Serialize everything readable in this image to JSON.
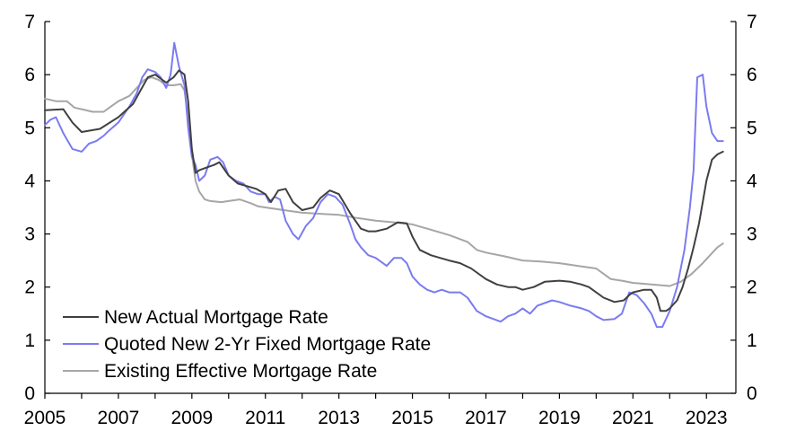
{
  "chart_data": {
    "type": "line",
    "title": "",
    "xlabel": "",
    "ylabel": "",
    "xlim": [
      2005,
      2023.8
    ],
    "ylim": [
      0,
      7
    ],
    "x_ticks": [
      "2005",
      "2007",
      "2009",
      "2011",
      "2013",
      "2015",
      "2017",
      "2019",
      "2021",
      "2023"
    ],
    "y_ticks": [
      "0",
      "1",
      "2",
      "3",
      "4",
      "5",
      "6",
      "7"
    ],
    "y_ticks_right": [
      "0",
      "1",
      "2",
      "3",
      "4",
      "5",
      "6",
      "7"
    ],
    "grid": false,
    "legend_position": "bottom-left",
    "series": [
      {
        "name": "New Actual Mortgage Rate",
        "color": "#404040",
        "points": [
          [
            2005.0,
            5.33
          ],
          [
            2005.5,
            5.35
          ],
          [
            2005.75,
            5.1
          ],
          [
            2006.0,
            4.92
          ],
          [
            2006.5,
            4.98
          ],
          [
            2007.0,
            5.2
          ],
          [
            2007.4,
            5.45
          ],
          [
            2007.6,
            5.7
          ],
          [
            2007.8,
            5.95
          ],
          [
            2008.0,
            6.0
          ],
          [
            2008.3,
            5.85
          ],
          [
            2008.5,
            5.95
          ],
          [
            2008.65,
            6.08
          ],
          [
            2008.8,
            6.0
          ],
          [
            2008.9,
            5.5
          ],
          [
            2009.0,
            4.6
          ],
          [
            2009.1,
            4.15
          ],
          [
            2009.2,
            4.2
          ],
          [
            2009.4,
            4.25
          ],
          [
            2009.6,
            4.3
          ],
          [
            2009.75,
            4.35
          ],
          [
            2010.0,
            4.1
          ],
          [
            2010.25,
            3.95
          ],
          [
            2010.5,
            3.9
          ],
          [
            2010.75,
            3.85
          ],
          [
            2011.0,
            3.75
          ],
          [
            2011.15,
            3.6
          ],
          [
            2011.35,
            3.82
          ],
          [
            2011.55,
            3.85
          ],
          [
            2011.75,
            3.6
          ],
          [
            2012.0,
            3.45
          ],
          [
            2012.3,
            3.5
          ],
          [
            2012.5,
            3.68
          ],
          [
            2012.75,
            3.82
          ],
          [
            2013.0,
            3.75
          ],
          [
            2013.3,
            3.4
          ],
          [
            2013.6,
            3.1
          ],
          [
            2013.8,
            3.05
          ],
          [
            2014.0,
            3.05
          ],
          [
            2014.3,
            3.1
          ],
          [
            2014.6,
            3.22
          ],
          [
            2014.85,
            3.2
          ],
          [
            2015.0,
            2.95
          ],
          [
            2015.2,
            2.7
          ],
          [
            2015.5,
            2.6
          ],
          [
            2015.75,
            2.55
          ],
          [
            2016.0,
            2.5
          ],
          [
            2016.3,
            2.45
          ],
          [
            2016.6,
            2.35
          ],
          [
            2017.0,
            2.15
          ],
          [
            2017.3,
            2.05
          ],
          [
            2017.6,
            2.0
          ],
          [
            2017.8,
            2.0
          ],
          [
            2018.0,
            1.95
          ],
          [
            2018.3,
            2.0
          ],
          [
            2018.6,
            2.1
          ],
          [
            2019.0,
            2.12
          ],
          [
            2019.3,
            2.1
          ],
          [
            2019.6,
            2.05
          ],
          [
            2019.8,
            2.0
          ],
          [
            2020.0,
            1.9
          ],
          [
            2020.2,
            1.8
          ],
          [
            2020.5,
            1.72
          ],
          [
            2020.75,
            1.75
          ],
          [
            2020.9,
            1.85
          ],
          [
            2021.0,
            1.9
          ],
          [
            2021.3,
            1.95
          ],
          [
            2021.5,
            1.95
          ],
          [
            2021.65,
            1.8
          ],
          [
            2021.75,
            1.55
          ],
          [
            2021.9,
            1.55
          ],
          [
            2022.0,
            1.6
          ],
          [
            2022.2,
            1.75
          ],
          [
            2022.35,
            2.0
          ],
          [
            2022.5,
            2.35
          ],
          [
            2022.65,
            2.75
          ],
          [
            2022.8,
            3.2
          ],
          [
            2022.9,
            3.6
          ],
          [
            2023.0,
            4.0
          ],
          [
            2023.15,
            4.4
          ],
          [
            2023.3,
            4.5
          ],
          [
            2023.45,
            4.55
          ]
        ]
      },
      {
        "name": "Quoted New 2-Yr Fixed Mortgage Rate",
        "color": "#7b7bf0",
        "points": [
          [
            2005.0,
            5.05
          ],
          [
            2005.15,
            5.15
          ],
          [
            2005.3,
            5.2
          ],
          [
            2005.5,
            4.9
          ],
          [
            2005.75,
            4.6
          ],
          [
            2006.0,
            4.55
          ],
          [
            2006.2,
            4.7
          ],
          [
            2006.4,
            4.75
          ],
          [
            2006.6,
            4.85
          ],
          [
            2006.75,
            4.95
          ],
          [
            2007.0,
            5.1
          ],
          [
            2007.3,
            5.4
          ],
          [
            2007.5,
            5.65
          ],
          [
            2007.65,
            5.95
          ],
          [
            2007.8,
            6.1
          ],
          [
            2008.0,
            6.05
          ],
          [
            2008.15,
            5.95
          ],
          [
            2008.3,
            5.75
          ],
          [
            2008.42,
            6.0
          ],
          [
            2008.52,
            6.6
          ],
          [
            2008.65,
            6.15
          ],
          [
            2008.8,
            5.8
          ],
          [
            2008.9,
            5.0
          ],
          [
            2009.0,
            4.45
          ],
          [
            2009.1,
            4.3
          ],
          [
            2009.2,
            4.0
          ],
          [
            2009.35,
            4.1
          ],
          [
            2009.5,
            4.4
          ],
          [
            2009.7,
            4.45
          ],
          [
            2009.85,
            4.35
          ],
          [
            2010.0,
            4.1
          ],
          [
            2010.2,
            4.0
          ],
          [
            2010.4,
            3.95
          ],
          [
            2010.6,
            3.8
          ],
          [
            2010.8,
            3.75
          ],
          [
            2011.0,
            3.75
          ],
          [
            2011.1,
            3.6
          ],
          [
            2011.25,
            3.7
          ],
          [
            2011.4,
            3.65
          ],
          [
            2011.55,
            3.25
          ],
          [
            2011.75,
            3.0
          ],
          [
            2011.9,
            2.9
          ],
          [
            2012.1,
            3.15
          ],
          [
            2012.3,
            3.3
          ],
          [
            2012.5,
            3.6
          ],
          [
            2012.7,
            3.75
          ],
          [
            2012.9,
            3.7
          ],
          [
            2013.1,
            3.55
          ],
          [
            2013.3,
            3.2
          ],
          [
            2013.45,
            2.9
          ],
          [
            2013.6,
            2.75
          ],
          [
            2013.8,
            2.6
          ],
          [
            2014.0,
            2.55
          ],
          [
            2014.3,
            2.4
          ],
          [
            2014.5,
            2.55
          ],
          [
            2014.7,
            2.55
          ],
          [
            2014.85,
            2.45
          ],
          [
            2015.0,
            2.2
          ],
          [
            2015.2,
            2.05
          ],
          [
            2015.4,
            1.95
          ],
          [
            2015.6,
            1.9
          ],
          [
            2015.8,
            1.95
          ],
          [
            2016.0,
            1.9
          ],
          [
            2016.3,
            1.9
          ],
          [
            2016.5,
            1.8
          ],
          [
            2016.75,
            1.55
          ],
          [
            2017.0,
            1.45
          ],
          [
            2017.2,
            1.4
          ],
          [
            2017.4,
            1.35
          ],
          [
            2017.6,
            1.45
          ],
          [
            2017.8,
            1.5
          ],
          [
            2018.0,
            1.6
          ],
          [
            2018.2,
            1.5
          ],
          [
            2018.4,
            1.65
          ],
          [
            2018.6,
            1.7
          ],
          [
            2018.8,
            1.75
          ],
          [
            2019.0,
            1.72
          ],
          [
            2019.3,
            1.65
          ],
          [
            2019.6,
            1.6
          ],
          [
            2019.8,
            1.55
          ],
          [
            2020.0,
            1.45
          ],
          [
            2020.2,
            1.38
          ],
          [
            2020.5,
            1.4
          ],
          [
            2020.7,
            1.5
          ],
          [
            2020.9,
            1.9
          ],
          [
            2021.1,
            1.85
          ],
          [
            2021.3,
            1.7
          ],
          [
            2021.5,
            1.5
          ],
          [
            2021.65,
            1.25
          ],
          [
            2021.8,
            1.25
          ],
          [
            2022.0,
            1.55
          ],
          [
            2022.2,
            2.0
          ],
          [
            2022.4,
            2.7
          ],
          [
            2022.55,
            3.5
          ],
          [
            2022.65,
            4.2
          ],
          [
            2022.75,
            5.95
          ],
          [
            2022.9,
            6.0
          ],
          [
            2023.0,
            5.4
          ],
          [
            2023.15,
            4.9
          ],
          [
            2023.3,
            4.75
          ],
          [
            2023.45,
            4.75
          ]
        ]
      },
      {
        "name": "Existing Effective Mortgage Rate",
        "color": "#a6a6a6",
        "points": [
          [
            2005.0,
            5.55
          ],
          [
            2005.3,
            5.5
          ],
          [
            2005.6,
            5.5
          ],
          [
            2005.8,
            5.38
          ],
          [
            2006.0,
            5.35
          ],
          [
            2006.3,
            5.3
          ],
          [
            2006.6,
            5.3
          ],
          [
            2006.8,
            5.4
          ],
          [
            2007.0,
            5.5
          ],
          [
            2007.3,
            5.6
          ],
          [
            2007.5,
            5.75
          ],
          [
            2007.7,
            5.9
          ],
          [
            2007.9,
            5.95
          ],
          [
            2008.1,
            5.9
          ],
          [
            2008.3,
            5.8
          ],
          [
            2008.5,
            5.8
          ],
          [
            2008.7,
            5.82
          ],
          [
            2008.8,
            5.7
          ],
          [
            2008.9,
            5.2
          ],
          [
            2009.0,
            4.5
          ],
          [
            2009.1,
            4.0
          ],
          [
            2009.2,
            3.8
          ],
          [
            2009.35,
            3.65
          ],
          [
            2009.5,
            3.62
          ],
          [
            2009.8,
            3.6
          ],
          [
            2010.0,
            3.62
          ],
          [
            2010.3,
            3.65
          ],
          [
            2010.6,
            3.58
          ],
          [
            2010.8,
            3.52
          ],
          [
            2011.0,
            3.5
          ],
          [
            2011.5,
            3.45
          ],
          [
            2012.0,
            3.4
          ],
          [
            2012.5,
            3.38
          ],
          [
            2013.0,
            3.36
          ],
          [
            2013.5,
            3.3
          ],
          [
            2014.0,
            3.25
          ],
          [
            2014.5,
            3.22
          ],
          [
            2015.0,
            3.18
          ],
          [
            2015.5,
            3.08
          ],
          [
            2016.0,
            2.98
          ],
          [
            2016.5,
            2.85
          ],
          [
            2016.75,
            2.7
          ],
          [
            2017.0,
            2.65
          ],
          [
            2017.5,
            2.58
          ],
          [
            2018.0,
            2.5
          ],
          [
            2018.5,
            2.48
          ],
          [
            2019.0,
            2.45
          ],
          [
            2019.5,
            2.4
          ],
          [
            2020.0,
            2.35
          ],
          [
            2020.2,
            2.25
          ],
          [
            2020.4,
            2.15
          ],
          [
            2020.7,
            2.12
          ],
          [
            2021.0,
            2.08
          ],
          [
            2021.5,
            2.05
          ],
          [
            2022.0,
            2.02
          ],
          [
            2022.3,
            2.1
          ],
          [
            2022.6,
            2.25
          ],
          [
            2022.9,
            2.45
          ],
          [
            2023.1,
            2.6
          ],
          [
            2023.3,
            2.75
          ],
          [
            2023.45,
            2.82
          ]
        ]
      }
    ]
  }
}
